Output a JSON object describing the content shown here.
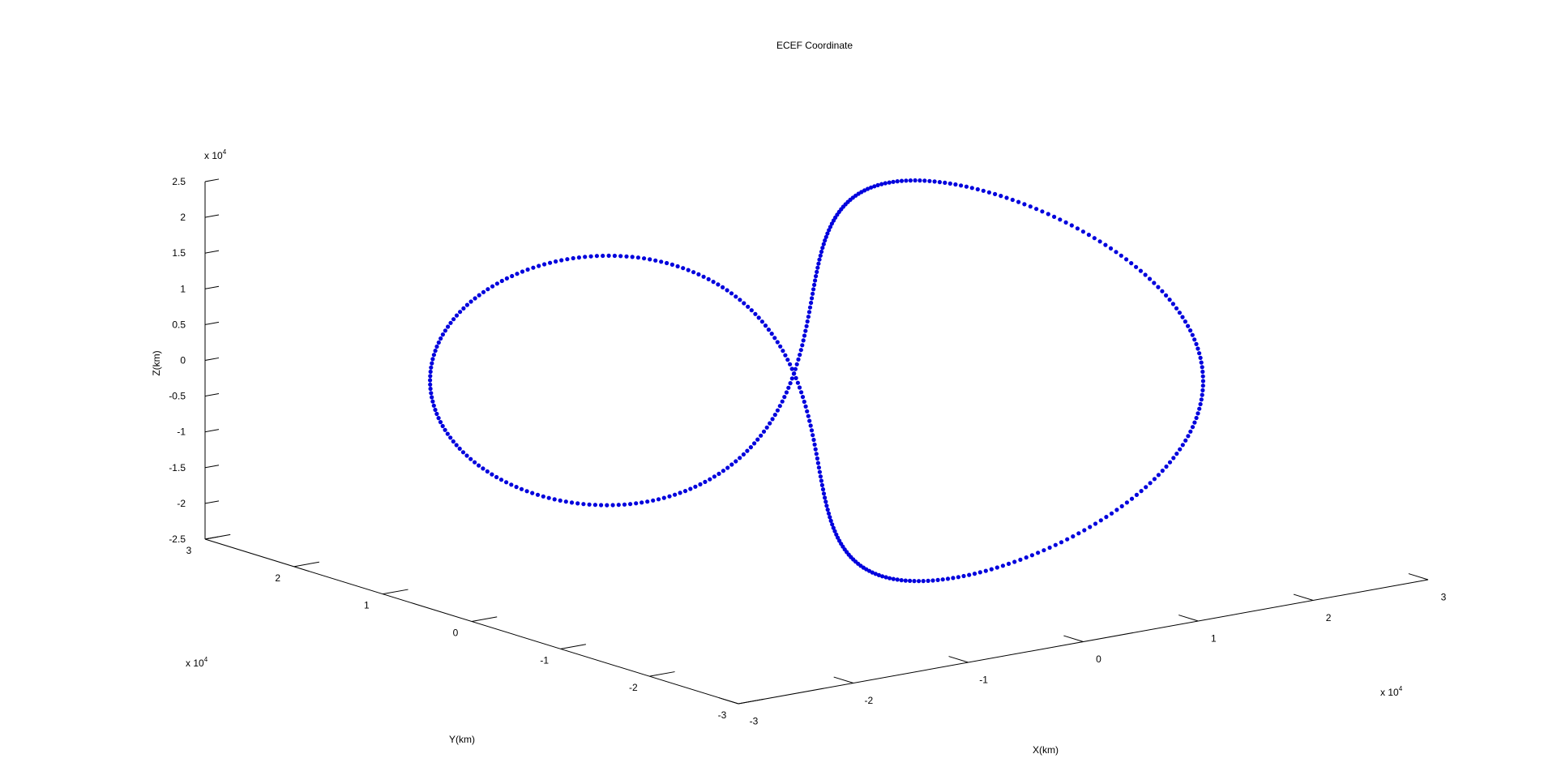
{
  "chart_data": {
    "type": "scatter",
    "title": "ECEF Coordinate",
    "xlabel": "X(km)",
    "ylabel": "Y(km)",
    "zlabel": "Z(km)",
    "axis_exponent_label": "x 10",
    "axis_exponent_power": "4",
    "x_ticks": [
      "-3",
      "-2",
      "-1",
      "0",
      "1",
      "2",
      "3"
    ],
    "y_ticks": [
      "-3",
      "-2",
      "-1",
      "0",
      "1",
      "2",
      "3"
    ],
    "z_ticks": [
      "-2.5",
      "-2",
      "-1.5",
      "-1",
      "-0.5",
      "0",
      "0.5",
      "1",
      "1.5",
      "2",
      "2.5"
    ],
    "xlim": [
      -3,
      3
    ],
    "ylim": [
      -3,
      3
    ],
    "zlim": [
      -2.5,
      2.5
    ],
    "units_multiplier": 10000,
    "grid": false,
    "marker_color": "#0000dd",
    "series": [
      {
        "marker": ".",
        "x": [],
        "y": [],
        "z": []
      }
    ]
  }
}
